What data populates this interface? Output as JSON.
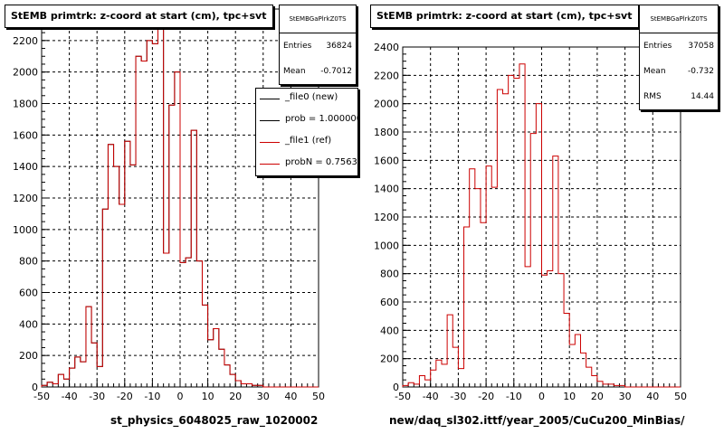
{
  "chart_data": [
    {
      "type": "bar",
      "title": "StEMB primtrk: z-coord at start (cm), tpc+svt",
      "xlabel": "st_physics_6048025_raw_1020002",
      "ylabel": "",
      "xlim": [
        -50,
        50
      ],
      "ylim": [
        0,
        2400
      ],
      "x_ticks": [
        "-50",
        "-40",
        "-30",
        "-20",
        "-10",
        "0",
        "10",
        "20",
        "30",
        "40",
        "50"
      ],
      "y_ticks": [
        "0",
        "200",
        "400",
        "600",
        "800",
        "1000",
        "1200",
        "1400",
        "1600",
        "1800",
        "2000",
        "2200"
      ],
      "grid": true,
      "bin_edges_start": -50,
      "bin_width": 2,
      "series": [
        {
          "name": "_file0 (new)",
          "color": "#000000",
          "values": [
            10,
            30,
            20,
            80,
            50,
            120,
            190,
            160,
            510,
            280,
            130,
            1130,
            1540,
            1400,
            1160,
            1560,
            1410,
            2100,
            2070,
            2200,
            2180,
            2280,
            850,
            1790,
            2000,
            790,
            820,
            1630,
            800,
            520,
            300,
            370,
            240,
            140,
            80,
            40,
            20,
            20,
            10,
            10,
            0,
            0,
            0,
            0,
            0,
            0,
            0,
            0,
            0,
            0
          ]
        },
        {
          "name": "_file1 (ref)",
          "color": "#cc0000",
          "values": [
            10,
            30,
            20,
            80,
            50,
            120,
            190,
            160,
            510,
            280,
            130,
            1130,
            1540,
            1400,
            1160,
            1560,
            1410,
            2100,
            2070,
            2200,
            2180,
            2280,
            850,
            1790,
            2000,
            790,
            820,
            1630,
            800,
            520,
            300,
            370,
            240,
            140,
            80,
            40,
            20,
            20,
            10,
            10,
            0,
            0,
            0,
            0,
            0,
            0,
            0,
            0,
            0,
            0
          ]
        }
      ],
      "stats": {
        "name": "StEMBGaPlrkZ0TS",
        "rows": [
          {
            "label": "Entries",
            "value": "36824"
          },
          {
            "label": "Mean",
            "value": "-0.7012"
          }
        ]
      },
      "legend": {
        "placement": "top-right",
        "entries": [
          {
            "text": "_file0 (new)",
            "color": "#000000"
          },
          {
            "text": "prob = 1.000000",
            "color": "#000000"
          },
          {
            "text": "_file1 (ref)",
            "color": "#cc0000"
          },
          {
            "text": "probN = 0.756300",
            "color": "#cc0000"
          }
        ]
      }
    },
    {
      "type": "bar",
      "title": "StEMB primtrk: z-coord at start (cm), tpc+svt",
      "xlabel": "new/daq_sl302.ittf/year_2005/CuCu200_MinBias/",
      "ylabel": "",
      "xlim": [
        -50,
        50
      ],
      "ylim": [
        0,
        2400
      ],
      "x_ticks": [
        "-50",
        "-40",
        "-30",
        "-20",
        "-10",
        "0",
        "10",
        "20",
        "30",
        "40",
        "50"
      ],
      "y_ticks": [
        "0",
        "200",
        "400",
        "600",
        "800",
        "1000",
        "1200",
        "1400",
        "1600",
        "1800",
        "2000",
        "2200",
        "2400"
      ],
      "grid": true,
      "bin_edges_start": -50,
      "bin_width": 2,
      "series": [
        {
          "color": "#cc0000",
          "values": [
            10,
            30,
            20,
            80,
            50,
            120,
            190,
            160,
            510,
            280,
            130,
            1130,
            1540,
            1400,
            1160,
            1560,
            1410,
            2100,
            2070,
            2200,
            2180,
            2280,
            850,
            1790,
            2000,
            790,
            820,
            1630,
            800,
            520,
            300,
            370,
            240,
            140,
            80,
            40,
            20,
            20,
            10,
            10,
            0,
            0,
            0,
            0,
            0,
            0,
            0,
            0,
            0,
            0
          ]
        }
      ],
      "stats": {
        "name": "StEMBGaPlrkZ0TS",
        "rows": [
          {
            "label": "Entries",
            "value": "37058"
          },
          {
            "label": "Mean",
            "value": "-0.732"
          },
          {
            "label": "RMS",
            "value": "14.44"
          }
        ]
      }
    }
  ]
}
